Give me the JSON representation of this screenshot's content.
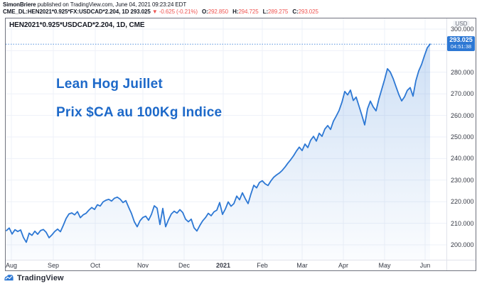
{
  "header": {
    "publisher": "SimonBriere",
    "published": " published on TradingView.com, June 04, 2021 09:23:24 EDT",
    "symbol": "CME_DL:HEN2021*0.925*FX:USDCAD*2.204, 1D",
    "quote": {
      "last": "293.025",
      "dir": "▼",
      "change": "-0.625 (-0.21%)",
      "ohlc": [
        {
          "k": "O:",
          "v": "292.850"
        },
        {
          "k": "H:",
          "v": "294.725"
        },
        {
          "k": "L:",
          "v": "289.275"
        },
        {
          "k": "C:",
          "v": "293.025"
        }
      ]
    }
  },
  "chart": {
    "legend": "HEN2021*0.925*USDCAD*2.204, 1D, CME",
    "annotation": {
      "line1": "Lean Hog Juillet",
      "line2": "Prix $CA au 100Kg Indice"
    },
    "price_axis": {
      "currency": "USD",
      "badge": {
        "price": "293.025",
        "countdown": "04:51:38"
      }
    }
  },
  "footer": {
    "brand": "TradingView"
  },
  "colors": {
    "line_blue": "#2d78d4",
    "annotation_blue": "#1d69c9",
    "down_red": "#ef5350",
    "grid": "#eef1f8",
    "axis_text": "#363a45",
    "frame_border": "#70737e",
    "badge_blue": "#2d78d4"
  },
  "chart_data": {
    "type": "area",
    "title": "HEN2021*0.925*USDCAD*2.204, 1D, CME",
    "ylabel": "USD",
    "ylim": [
      193,
      305
    ],
    "grid": true,
    "legend_position": "top-left",
    "last_price": 293.025,
    "y_ticks": [
      200,
      210,
      220,
      230,
      240,
      250,
      260,
      270,
      280,
      290,
      300
    ],
    "y_labels_visible": [
      "300.000",
      "280.000",
      "270.000",
      "260.000",
      "250.000",
      "240.000",
      "230.000",
      "220.000",
      "210.000",
      "200.000"
    ],
    "x_ticks": [
      {
        "label": "Aug",
        "i": 1.75,
        "bold": false
      },
      {
        "label": "Sep",
        "i": 16.5,
        "bold": false
      },
      {
        "label": "Oct",
        "i": 31.25,
        "bold": false
      },
      {
        "label": "Nov",
        "i": 48,
        "bold": false
      },
      {
        "label": "Dec",
        "i": 62.5,
        "bold": false
      },
      {
        "label": "2021",
        "i": 76.25,
        "bold": true
      },
      {
        "label": "Feb",
        "i": 90,
        "bold": false
      },
      {
        "label": "Mar",
        "i": 104,
        "bold": false
      },
      {
        "label": "Apr",
        "i": 118.5,
        "bold": false
      },
      {
        "label": "May",
        "i": 133,
        "bold": false
      },
      {
        "label": "Jun",
        "i": 147.25,
        "bold": false
      }
    ],
    "series": [
      {
        "name": "HEN2021*0.925*USDCAD*2.204",
        "values": [
          206.6,
          207.8,
          205.0,
          207.0,
          206.2,
          206.9,
          203.4,
          201.2,
          205.4,
          204.4,
          206.3,
          204.9,
          206.6,
          207.1,
          205.8,
          203.3,
          204.6,
          206.2,
          207.3,
          206.1,
          209.0,
          212.2,
          214.3,
          214.8,
          213.9,
          215.4,
          212.6,
          213.9,
          214.6,
          216.1,
          217.3,
          216.4,
          218.6,
          218.0,
          219.9,
          220.7,
          221.1,
          220.3,
          221.6,
          222.1,
          221.2,
          219.6,
          220.5,
          217.4,
          214.5,
          210.7,
          208.4,
          211.2,
          212.7,
          213.3,
          211.4,
          214.1,
          218.1,
          217.0,
          209.4,
          216.9,
          208.4,
          211.6,
          214.3,
          215.6,
          214.7,
          216.3,
          215.0,
          211.9,
          210.7,
          211.9,
          207.9,
          206.4,
          208.9,
          211.1,
          212.6,
          214.6,
          213.5,
          215.3,
          216.1,
          219.6,
          214.1,
          216.6,
          219.9,
          217.9,
          219.1,
          222.6,
          220.9,
          224.1,
          221.4,
          219.1,
          223.6,
          227.6,
          226.4,
          228.9,
          229.7,
          228.3,
          227.5,
          229.6,
          231.3,
          232.4,
          233.3,
          234.5,
          236.1,
          237.9,
          239.5,
          241.3,
          243.5,
          245.3,
          243.7,
          246.7,
          245.1,
          248.5,
          250.3,
          248.1,
          251.7,
          250.3,
          253.7,
          255.3,
          253.5,
          257.3,
          259.7,
          262.3,
          266.1,
          271.1,
          269.5,
          271.7,
          266.9,
          268.5,
          264.3,
          260.1,
          255.6,
          263.1,
          266.6,
          263.9,
          262.1,
          267.6,
          272.1,
          276.6,
          281.6,
          280.1,
          277.1,
          273.4,
          269.7,
          266.7,
          268.6,
          271.6,
          272.9,
          268.9,
          276.1,
          280.6,
          283.6,
          287.6,
          291.3,
          293.025
        ]
      }
    ]
  }
}
